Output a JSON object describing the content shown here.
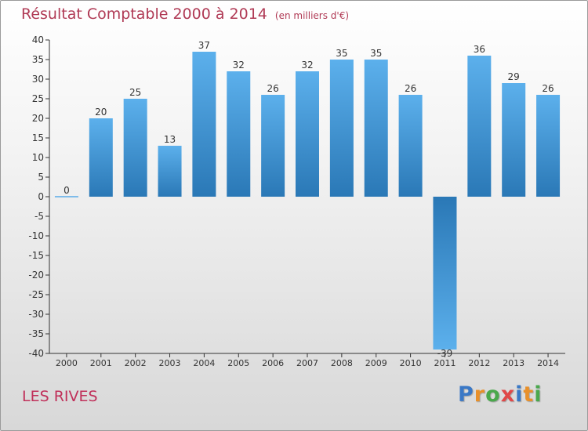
{
  "chart_data": {
    "type": "bar",
    "title": "Résultat Comptable 2000 à 2014",
    "unit_note": "(en milliers d'€)",
    "categories": [
      "2000",
      "2001",
      "2002",
      "2003",
      "2004",
      "2005",
      "2006",
      "2007",
      "2008",
      "2009",
      "2010",
      "2011",
      "2012",
      "2013",
      "2014"
    ],
    "values": [
      0,
      20,
      25,
      13,
      37,
      32,
      26,
      32,
      35,
      35,
      26,
      -39,
      36,
      29,
      26
    ],
    "ylim": [
      -40,
      40
    ],
    "ytick_step": 5,
    "xlabel": "",
    "ylabel": "",
    "grid": false
  },
  "commune_name": "LES RIVES",
  "logo": {
    "text": "Proxiti",
    "letters": [
      "P",
      "r",
      "o",
      "x",
      "i",
      "t",
      "i"
    ],
    "colors": [
      "#3a78c6",
      "#e8902a",
      "#4aa84c",
      "#e04848",
      "#3a78c6",
      "#e8902a",
      "#4aa84c"
    ]
  },
  "colors": {
    "bar_light": "#5aace8",
    "bar_dark": "#2878b8",
    "title": "#b03a55",
    "axis": "#333333"
  }
}
